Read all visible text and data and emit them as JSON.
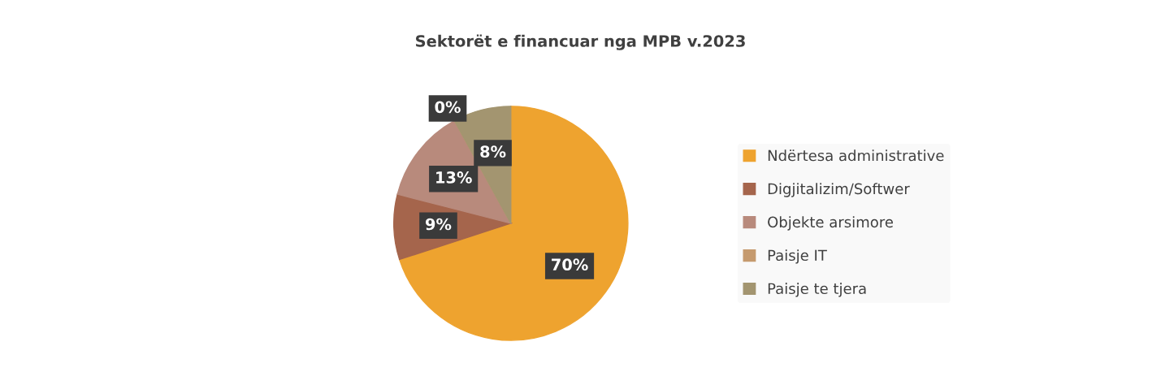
{
  "chart_data": {
    "type": "pie",
    "title": "Sektorët e financuar nga MPB v.2023",
    "categories": [
      "Ndërtesa administrative",
      "Digjitalizim/Softwer",
      "Objekte arsimore",
      "Paisje IT",
      "Paisje te tjera"
    ],
    "values": [
      70,
      9,
      13,
      0,
      8
    ],
    "colors": [
      "#eea32f",
      "#a5654c",
      "#b88a7c",
      "#c59a6e",
      "#a39570"
    ],
    "value_labels": [
      "70%",
      "9%",
      "13%",
      "0%",
      "8%"
    ],
    "legend": "right"
  }
}
